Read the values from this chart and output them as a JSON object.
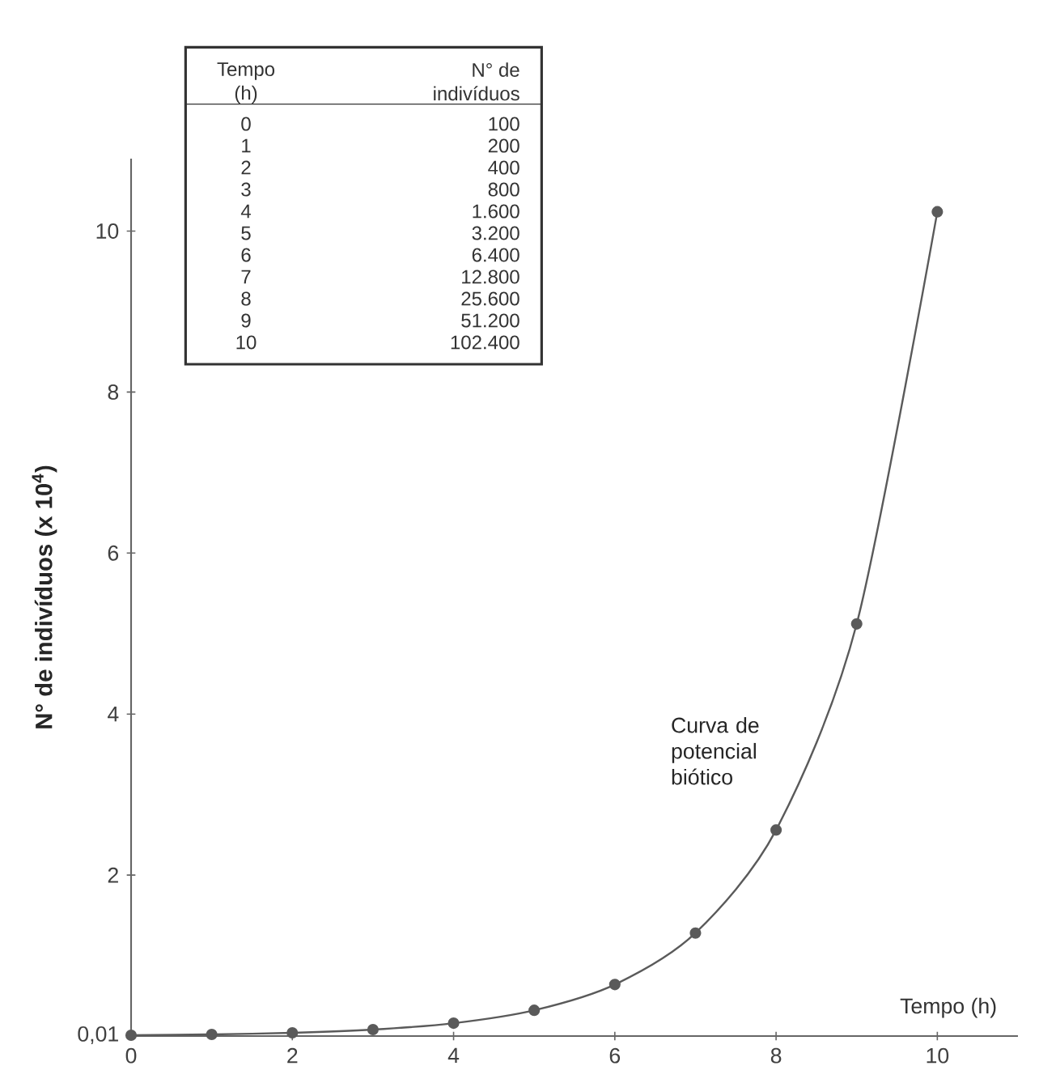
{
  "chart_data": {
    "type": "line",
    "xlabel": "Tempo (h)",
    "ylabel": "N° de indivíduos (x 10$^{4}$)",
    "x": [
      0,
      1,
      2,
      3,
      4,
      5,
      6,
      7,
      8,
      9,
      10
    ],
    "values": [
      0.01,
      0.02,
      0.04,
      0.08,
      0.16,
      0.32,
      0.64,
      1.28,
      2.56,
      5.12,
      10.24
    ],
    "color": "#5a5a5a",
    "marker": "circle",
    "line_style": "solid",
    "xlim": [
      0,
      11
    ],
    "ylim": [
      0,
      10.9
    ],
    "xticks": [
      0,
      2,
      4,
      6,
      8,
      10
    ],
    "yticks": [
      {
        "value": 0.01,
        "label": "0,01"
      },
      2,
      4,
      6,
      8,
      10
    ],
    "annotations": [
      "Curva de potencial biótico",
      "Tempo (h)",
      "N° de indivíduos",
      "0",
      "100",
      "1",
      "200",
      "2",
      "400",
      "3",
      "800",
      "4",
      "1.600",
      "5",
      "3.200",
      "6",
      "6.400",
      "7",
      "12.800",
      "8",
      "25.600",
      "9",
      "51.200",
      "10",
      "102.400"
    ]
  }
}
